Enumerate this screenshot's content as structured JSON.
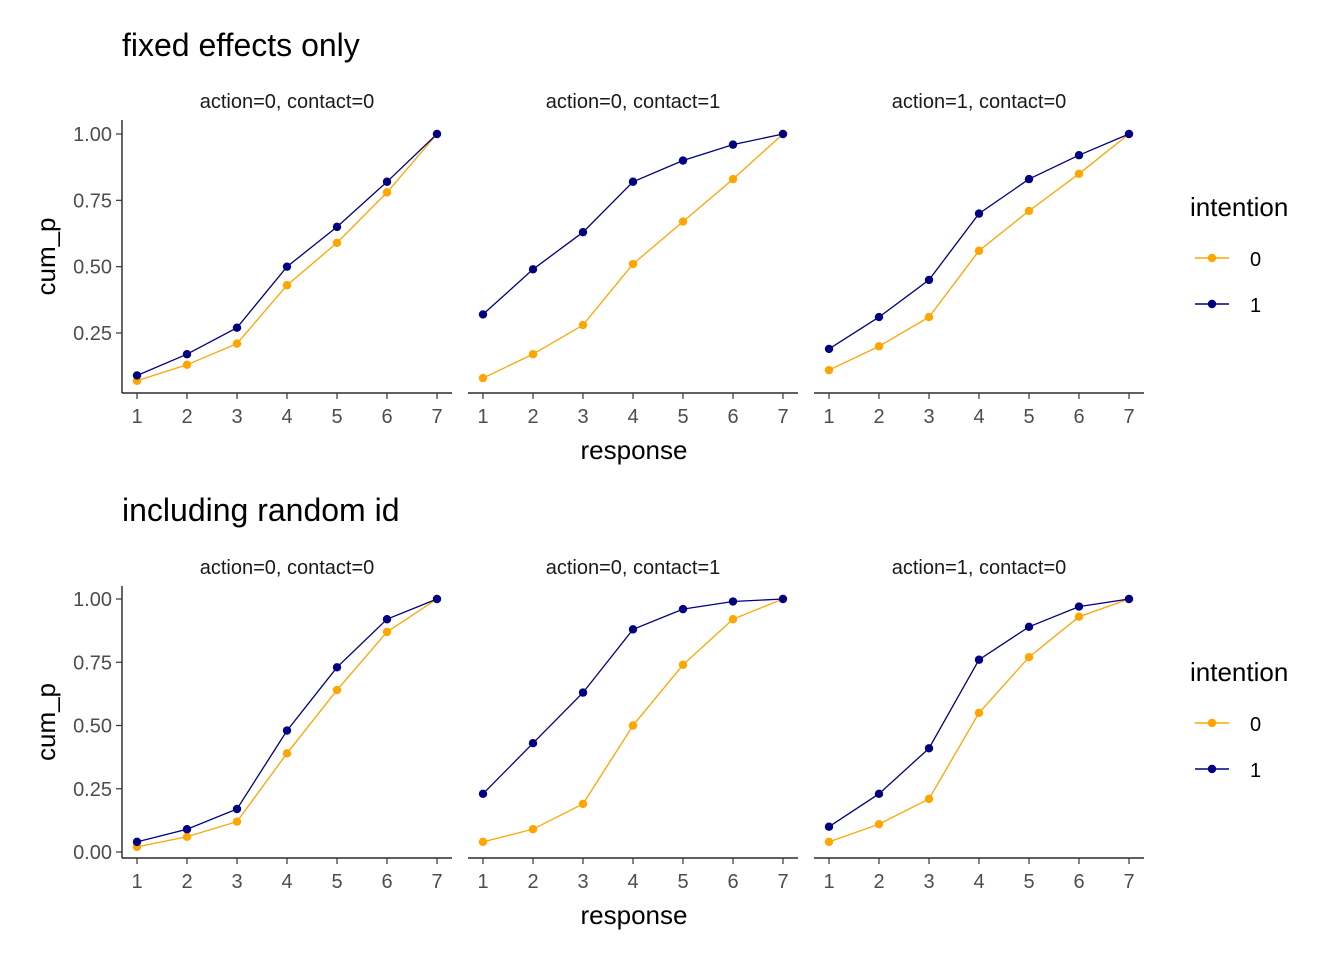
{
  "chart_data": [
    {
      "type": "line",
      "title": "fixed effects only",
      "xlabel": "response",
      "ylabel": "cum_p",
      "ylim": [
        0.06,
        1.0
      ],
      "x": [
        1,
        2,
        3,
        4,
        5,
        6,
        7
      ],
      "yticks": [
        "0.25",
        "0.50",
        "0.75",
        "1.00"
      ],
      "grid": false,
      "legend": {
        "title": "intention",
        "position": "right",
        "entries": [
          {
            "label": "0",
            "color": "#FFA500"
          },
          {
            "label": "1",
            "color": "#000080"
          }
        ]
      },
      "panels": [
        {
          "label": "action=0, contact=0",
          "series": [
            {
              "name": "0",
              "color": "#FFA500",
              "values": [
                0.07,
                0.13,
                0.21,
                0.43,
                0.59,
                0.78,
                1.0
              ]
            },
            {
              "name": "1",
              "color": "#000080",
              "values": [
                0.09,
                0.17,
                0.27,
                0.5,
                0.65,
                0.82,
                1.0
              ]
            }
          ]
        },
        {
          "label": "action=0, contact=1",
          "series": [
            {
              "name": "0",
              "color": "#FFA500",
              "values": [
                0.08,
                0.17,
                0.28,
                0.51,
                0.67,
                0.83,
                1.0
              ]
            },
            {
              "name": "1",
              "color": "#000080",
              "values": [
                0.32,
                0.49,
                0.63,
                0.82,
                0.9,
                0.96,
                1.0
              ]
            }
          ]
        },
        {
          "label": "action=1, contact=0",
          "series": [
            {
              "name": "0",
              "color": "#FFA500",
              "values": [
                0.11,
                0.2,
                0.31,
                0.56,
                0.71,
                0.85,
                1.0
              ]
            },
            {
              "name": "1",
              "color": "#000080",
              "values": [
                0.19,
                0.31,
                0.45,
                0.7,
                0.83,
                0.92,
                1.0
              ]
            }
          ]
        }
      ]
    },
    {
      "type": "line",
      "title": "including random id",
      "xlabel": "response",
      "ylabel": "cum_p",
      "ylim": [
        0.0,
        1.0
      ],
      "x": [
        1,
        2,
        3,
        4,
        5,
        6,
        7
      ],
      "yticks": [
        "0.00",
        "0.25",
        "0.50",
        "0.75",
        "1.00"
      ],
      "grid": false,
      "legend": {
        "title": "intention",
        "position": "right",
        "entries": [
          {
            "label": "0",
            "color": "#FFA500"
          },
          {
            "label": "1",
            "color": "#000080"
          }
        ]
      },
      "panels": [
        {
          "label": "action=0, contact=0",
          "series": [
            {
              "name": "0",
              "color": "#FFA500",
              "values": [
                0.02,
                0.06,
                0.12,
                0.39,
                0.64,
                0.87,
                1.0
              ]
            },
            {
              "name": "1",
              "color": "#000080",
              "values": [
                0.04,
                0.09,
                0.17,
                0.48,
                0.73,
                0.92,
                1.0
              ]
            }
          ]
        },
        {
          "label": "action=0, contact=1",
          "series": [
            {
              "name": "0",
              "color": "#FFA500",
              "values": [
                0.04,
                0.09,
                0.19,
                0.5,
                0.74,
                0.92,
                1.0
              ]
            },
            {
              "name": "1",
              "color": "#000080",
              "values": [
                0.23,
                0.43,
                0.63,
                0.88,
                0.96,
                0.99,
                1.0
              ]
            }
          ]
        },
        {
          "label": "action=1, contact=0",
          "series": [
            {
              "name": "0",
              "color": "#FFA500",
              "values": [
                0.04,
                0.11,
                0.21,
                0.55,
                0.77,
                0.93,
                1.0
              ]
            },
            {
              "name": "1",
              "color": "#000080",
              "values": [
                0.1,
                0.23,
                0.41,
                0.76,
                0.89,
                0.97,
                1.0
              ]
            }
          ]
        }
      ]
    }
  ]
}
